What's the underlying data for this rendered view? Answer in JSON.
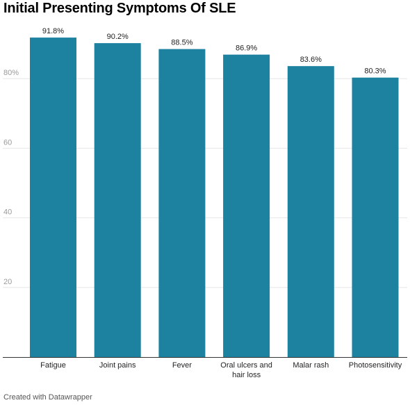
{
  "footer": "Created with Datawrapper",
  "colors": {
    "bar": "#1d82a0",
    "grid": "#e6e6e6",
    "axis": "#333333",
    "tick": "#9a9a9a",
    "text": "#222222"
  },
  "chart_data": {
    "type": "bar",
    "title": "Initial Presenting Symptoms Of SLE",
    "categories": [
      "Fatigue",
      "Joint pains",
      "Fever",
      "Oral ulcers and hair loss",
      "Malar rash",
      "Photosensitivity"
    ],
    "category_lines": [
      [
        "Fatigue"
      ],
      [
        "Joint pains"
      ],
      [
        "Fever"
      ],
      [
        "Oral ulcers and",
        "hair loss"
      ],
      [
        "Malar rash"
      ],
      [
        "Photosensitivity"
      ]
    ],
    "values": [
      91.8,
      90.2,
      88.5,
      86.9,
      83.6,
      80.3
    ],
    "value_labels": [
      "91.8%",
      "90.2%",
      "88.5%",
      "86.9%",
      "83.6%",
      "80.3%"
    ],
    "yticks": [
      20,
      40,
      60,
      80
    ],
    "ytick_labels": [
      "20",
      "40",
      "60",
      "80%"
    ],
    "ylim": [
      0,
      100
    ],
    "grid": true
  }
}
